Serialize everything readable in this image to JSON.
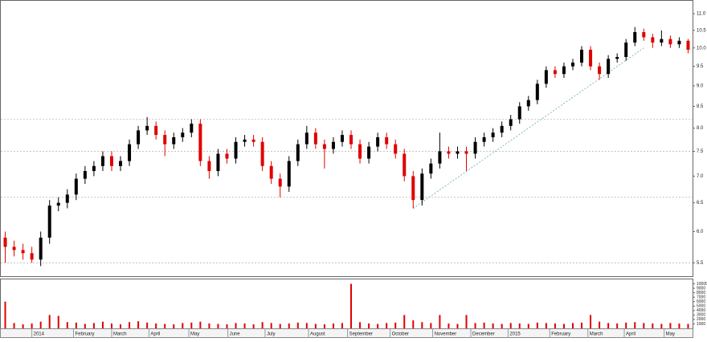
{
  "chart_data": [
    {
      "type": "candlestick",
      "up_color": "#000000",
      "down_color": "#e00000",
      "log_scale": true,
      "ylim": [
        5.3,
        11.4
      ],
      "yticks": [
        5.5,
        {
          "value": 6,
          "label": "6.0"
        },
        6.5,
        {
          "value": 7,
          "label": "7.0"
        },
        7.5,
        {
          "value": 8,
          "label": "8.0"
        },
        8.5,
        {
          "value": 9,
          "label": "9.0"
        },
        9.5,
        {
          "value": 10,
          "label": "10.0"
        },
        10.5,
        {
          "value": 11,
          "label": "11.0"
        }
      ],
      "xlim": [
        -0.5,
        77.5
      ],
      "xticks": [
        {
          "value": 3,
          "label": "2014"
        },
        {
          "value": 7.7,
          "label": "February"
        },
        {
          "value": 12,
          "label": "March"
        },
        {
          "value": 16.2,
          "label": "April"
        },
        {
          "value": 20.7,
          "label": "May"
        },
        {
          "value": 25.1,
          "label": "June"
        },
        {
          "value": 29.3,
          "label": "July"
        },
        {
          "value": 34.2,
          "label": "August"
        },
        {
          "value": 38.6,
          "label": "September"
        },
        {
          "value": 43.4,
          "label": "October"
        },
        {
          "value": 48.2,
          "label": "November"
        },
        {
          "value": 52.5,
          "label": "December"
        },
        {
          "value": 56.7,
          "label": "2015"
        },
        {
          "value": 61.4,
          "label": "February"
        },
        {
          "value": 65.7,
          "label": "March"
        },
        {
          "value": 69.8,
          "label": "April"
        },
        {
          "value": 74.3,
          "label": "May"
        }
      ],
      "open": [
        5.9,
        5.75,
        5.7,
        5.65,
        5.55,
        5.9,
        6.45,
        6.5,
        6.65,
        6.95,
        7.1,
        7.2,
        7.4,
        7.2,
        7.3,
        7.65,
        7.95,
        8.05,
        7.85,
        7.65,
        7.8,
        7.9,
        8.1,
        7.3,
        7.1,
        7.45,
        7.35,
        7.7,
        7.75,
        7.7,
        7.2,
        6.95,
        6.8,
        7.3,
        7.65,
        7.9,
        7.65,
        7.55,
        7.7,
        7.85,
        7.65,
        7.35,
        7.6,
        7.8,
        7.65,
        7.45,
        7.0,
        6.55,
        7.05,
        7.25,
        7.5,
        7.45,
        7.5,
        7.45,
        7.7,
        7.8,
        7.9,
        8.05,
        8.2,
        8.5,
        8.65,
        9.05,
        9.4,
        9.3,
        9.5,
        9.6,
        9.95,
        9.5,
        9.3,
        9.7,
        9.75,
        10.15,
        10.45,
        10.3,
        10.15,
        10.25,
        10.1,
        10.2
      ],
      "high": [
        6.0,
        5.85,
        5.8,
        5.75,
        6.0,
        6.55,
        6.6,
        6.75,
        7.05,
        7.2,
        7.3,
        7.5,
        7.5,
        7.4,
        7.75,
        8.05,
        8.25,
        8.15,
        7.95,
        7.9,
        8.0,
        8.2,
        8.2,
        7.4,
        7.55,
        7.55,
        7.8,
        7.85,
        7.85,
        7.8,
        7.3,
        7.05,
        7.4,
        7.75,
        8.05,
        8.0,
        7.75,
        7.8,
        7.95,
        7.95,
        7.75,
        7.7,
        7.9,
        7.9,
        7.75,
        7.55,
        7.1,
        7.15,
        7.35,
        7.9,
        7.6,
        7.6,
        7.6,
        7.8,
        7.9,
        8.0,
        8.15,
        8.3,
        8.6,
        8.75,
        9.15,
        9.5,
        9.5,
        9.6,
        9.7,
        10.05,
        10.05,
        9.6,
        9.8,
        9.85,
        10.25,
        10.6,
        10.55,
        10.4,
        10.5,
        10.35,
        10.3,
        10.25
      ],
      "low": [
        5.5,
        5.6,
        5.55,
        5.5,
        5.45,
        5.8,
        6.35,
        6.4,
        6.55,
        6.85,
        7.0,
        7.1,
        7.1,
        7.1,
        7.2,
        7.55,
        7.85,
        7.75,
        7.4,
        7.55,
        7.7,
        7.8,
        7.2,
        6.95,
        7.0,
        7.25,
        7.25,
        7.6,
        7.6,
        7.1,
        6.85,
        6.6,
        6.7,
        7.2,
        7.55,
        7.55,
        7.15,
        7.45,
        7.6,
        7.55,
        7.25,
        7.25,
        7.5,
        7.55,
        7.35,
        6.9,
        6.4,
        6.45,
        6.95,
        7.15,
        7.35,
        7.35,
        7.1,
        7.35,
        7.6,
        7.7,
        7.8,
        7.95,
        8.1,
        8.4,
        8.55,
        8.95,
        9.2,
        9.2,
        9.4,
        9.5,
        9.4,
        9.15,
        9.2,
        9.6,
        9.65,
        10.05,
        10.2,
        10.0,
        10.05,
        10.0,
        10.0,
        9.85
      ],
      "close": [
        5.75,
        5.7,
        5.65,
        5.55,
        5.9,
        6.45,
        6.5,
        6.65,
        6.95,
        7.1,
        7.2,
        7.4,
        7.2,
        7.3,
        7.65,
        7.95,
        8.05,
        7.85,
        7.65,
        7.8,
        7.9,
        8.1,
        7.3,
        7.1,
        7.45,
        7.35,
        7.7,
        7.75,
        7.7,
        7.2,
        6.95,
        6.8,
        7.3,
        7.65,
        7.9,
        7.65,
        7.55,
        7.7,
        7.85,
        7.65,
        7.35,
        7.6,
        7.8,
        7.65,
        7.45,
        7.0,
        6.55,
        7.05,
        7.25,
        7.5,
        7.45,
        7.5,
        7.45,
        7.7,
        7.8,
        7.9,
        8.05,
        8.2,
        8.5,
        8.65,
        9.05,
        9.4,
        9.3,
        9.5,
        9.6,
        9.95,
        9.5,
        9.3,
        9.7,
        9.75,
        10.15,
        10.45,
        10.3,
        10.15,
        10.25,
        10.1,
        10.2,
        9.95
      ],
      "levels": [
        8.2,
        7.5,
        6.6,
        5.5
      ],
      "level_color": "#b0b0b0",
      "trendline": {
        "x": [
          46,
          72
        ],
        "y": [
          6.4,
          10.0
        ],
        "color": "#6aa8a8"
      }
    },
    {
      "type": "bar",
      "color": "#e00000",
      "ylim": [
        0,
        11000
      ],
      "yticks": [
        1000,
        2000,
        3000,
        4000,
        5000,
        6000,
        7000,
        8000,
        9000,
        10000
      ],
      "values": [
        6000,
        1200,
        900,
        1100,
        1500,
        3000,
        2800,
        1400,
        1300,
        1000,
        1200,
        1500,
        1100,
        900,
        1400,
        1600,
        1300,
        1100,
        1000,
        900,
        1200,
        1300,
        1500,
        1100,
        1000,
        900,
        1200,
        1100,
        900,
        1400,
        1200,
        1000,
        1100,
        1300,
        1200,
        1000,
        900,
        1100,
        1200,
        10000,
        1400,
        1100,
        1000,
        1200,
        1300,
        3000,
        1800,
        1400,
        1200,
        3000,
        1100,
        1000,
        3000,
        1200,
        1300,
        1100,
        1000,
        1200,
        1100,
        1000,
        1300,
        1200,
        1100,
        1000,
        1200,
        1300,
        3000,
        1500,
        1200,
        1100,
        1300,
        1400,
        1200,
        1100,
        1000,
        1200,
        1100,
        1000
      ]
    }
  ]
}
